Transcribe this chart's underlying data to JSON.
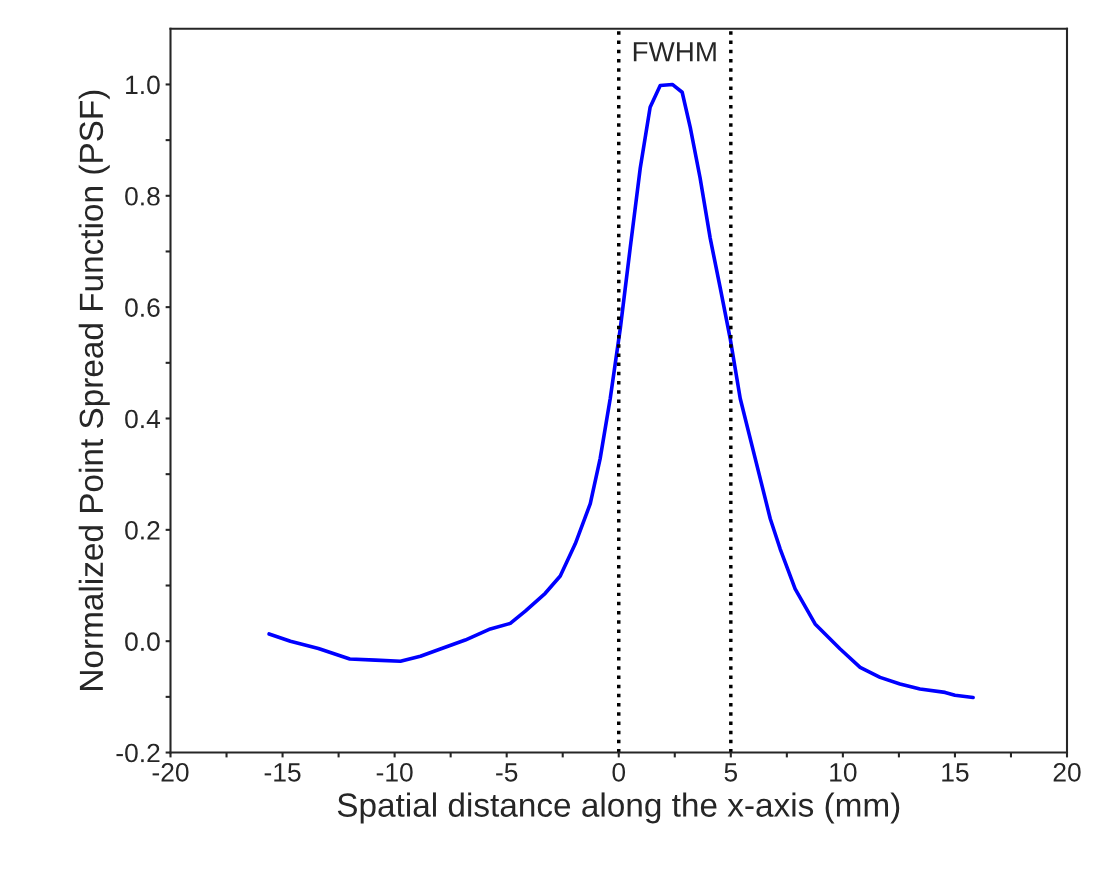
{
  "chart_data": {
    "type": "line",
    "xlabel": "Spatial distance along the x-axis (mm)",
    "ylabel": "Normalized Point Spread Function (PSF)",
    "x": [
      -15.6,
      -14.65,
      -13.4,
      -12.0,
      -10.86,
      -9.74,
      -8.85,
      -7.96,
      -6.85,
      -5.73,
      -4.84,
      -4.17,
      -3.28,
      -2.61,
      -1.94,
      -1.27,
      -0.83,
      -0.38,
      0.07,
      0.51,
      0.96,
      1.4,
      1.85,
      2.39,
      2.83,
      3.19,
      3.63,
      4.08,
      4.53,
      4.97,
      5.42,
      6.09,
      6.76,
      7.2,
      7.87,
      8.76,
      9.88,
      10.77,
      11.66,
      12.55,
      13.44,
      14.56,
      15.0,
      15.81
    ],
    "series": [
      {
        "color": "#0000ff",
        "values": [
          0.013,
          0.0,
          -0.013,
          -0.032,
          -0.034,
          -0.036,
          -0.027,
          -0.014,
          0.002,
          0.022,
          0.032,
          0.054,
          0.086,
          0.117,
          0.175,
          0.247,
          0.328,
          0.436,
          0.562,
          0.706,
          0.85,
          0.959,
          0.998,
          1.0,
          0.986,
          0.923,
          0.832,
          0.724,
          0.634,
          0.544,
          0.436,
          0.328,
          0.22,
          0.166,
          0.094,
          0.031,
          -0.014,
          -0.047,
          -0.065,
          -0.077,
          -0.086,
          -0.092,
          -0.097,
          -0.101
        ]
      }
    ],
    "xlim": [
      -20,
      20
    ],
    "ylim": [
      -0.2,
      1.1
    ],
    "xticks": [
      -20,
      {
        "value": -17.5,
        "label": null
      },
      -15,
      {
        "value": -12.5,
        "label": null
      },
      -10,
      {
        "value": -7.5,
        "label": null
      },
      -5,
      {
        "value": -2.5,
        "label": null
      },
      0,
      {
        "value": 2.5,
        "label": null
      },
      5,
      {
        "value": 7.5,
        "label": null
      },
      10,
      {
        "value": 12.5,
        "label": null
      },
      15,
      {
        "value": 17.5,
        "label": null
      },
      20
    ],
    "yticks": [
      {
        "value": -0.2,
        "label": "-0.2"
      },
      {
        "value": -0.1,
        "label": null
      },
      {
        "value": 0.0,
        "label": "0.0"
      },
      {
        "value": 0.1,
        "label": null
      },
      {
        "value": 0.2,
        "label": "0.2"
      },
      {
        "value": 0.3,
        "label": null
      },
      {
        "value": 0.4,
        "label": "0.4"
      },
      {
        "value": 0.5,
        "label": null
      },
      {
        "value": 0.6,
        "label": "0.6"
      },
      {
        "value": 0.7,
        "label": null
      },
      {
        "value": 0.8,
        "label": "0.8"
      },
      {
        "value": 0.9,
        "label": null
      },
      {
        "value": 1.0,
        "label": "1.0"
      }
    ],
    "ref_lines": [
      {
        "axis": "x",
        "value": 0,
        "color": "#000000",
        "line_style": "dotted"
      },
      {
        "axis": "x",
        "value": 5,
        "color": "#000000",
        "line_style": "dotted"
      }
    ],
    "annotations": [
      "FWHM"
    ],
    "grid": false,
    "legend": false,
    "line_style": "solid",
    "marker": "none"
  }
}
